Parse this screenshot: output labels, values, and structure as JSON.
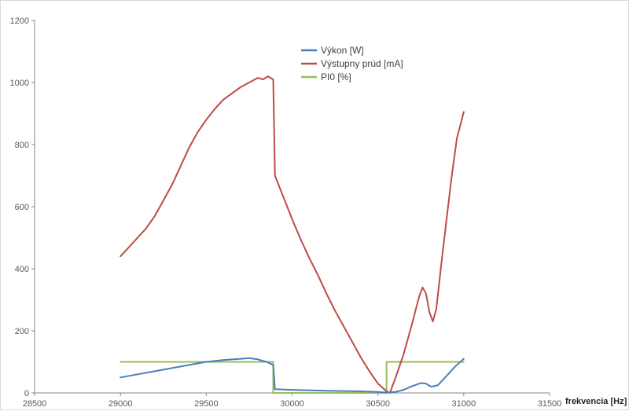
{
  "chart_data": {
    "type": "line",
    "title": "",
    "xlabel": "frekvencia [Hz]",
    "ylabel": "",
    "xlim": [
      28500,
      31500
    ],
    "ylim": [
      0,
      1200
    ],
    "xticks": [
      28500,
      29000,
      29500,
      30000,
      30500,
      31000,
      31500
    ],
    "yticks": [
      0,
      200,
      400,
      600,
      800,
      1000,
      1200
    ],
    "grid": false,
    "legend_position": "top-center",
    "series": [
      {
        "name": "Výkon [W]",
        "color": "#4a7ebb",
        "x": [
          29000,
          29100,
          29200,
          29300,
          29400,
          29500,
          29600,
          29700,
          29750,
          29800,
          29850,
          29890,
          29900,
          30000,
          30200,
          30400,
          30500,
          30550,
          30600,
          30650,
          30700,
          30750,
          30780,
          30810,
          30850,
          30900,
          30950,
          31000
        ],
        "y": [
          50,
          60,
          70,
          80,
          90,
          100,
          106,
          110,
          112,
          108,
          100,
          90,
          12,
          10,
          7,
          5,
          3,
          1,
          3,
          10,
          22,
          32,
          30,
          20,
          25,
          55,
          85,
          110
        ]
      },
      {
        "name": "Výstupny prúd [mA]",
        "color": "#be4b48",
        "x": [
          29000,
          29050,
          29100,
          29150,
          29200,
          29250,
          29300,
          29350,
          29400,
          29450,
          29500,
          29550,
          29600,
          29650,
          29700,
          29750,
          29800,
          29830,
          29860,
          29890,
          29900,
          29950,
          30000,
          30050,
          30100,
          30150,
          30200,
          30250,
          30300,
          30350,
          30400,
          30450,
          30500,
          30550,
          30570,
          30600,
          30650,
          30700,
          30740,
          30760,
          30780,
          30800,
          30820,
          30840,
          30870,
          30900,
          30930,
          30960,
          31000
        ],
        "y": [
          440,
          470,
          500,
          530,
          570,
          620,
          670,
          730,
          790,
          840,
          880,
          915,
          945,
          965,
          985,
          1000,
          1015,
          1010,
          1020,
          1010,
          700,
          630,
          560,
          495,
          435,
          380,
          320,
          265,
          215,
          165,
          115,
          70,
          30,
          5,
          0,
          45,
          125,
          225,
          310,
          340,
          320,
          260,
          230,
          270,
          420,
          560,
          700,
          820,
          905
        ]
      },
      {
        "name": "PI0 [%]",
        "color": "#9bbb59",
        "x": [
          29000,
          29890,
          29890,
          30550,
          30550,
          31000
        ],
        "y": [
          100,
          100,
          0,
          0,
          100,
          100
        ]
      }
    ]
  }
}
